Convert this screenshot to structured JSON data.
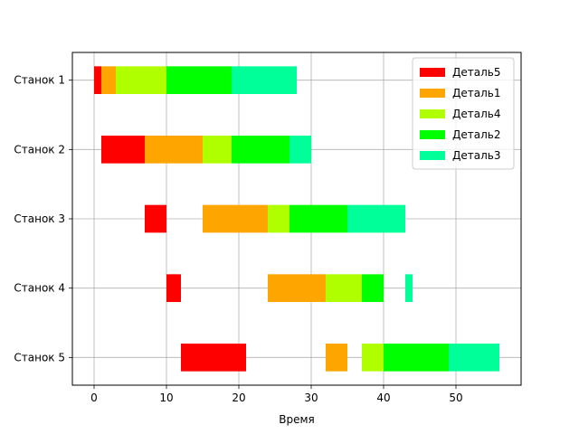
{
  "chart_data": {
    "type": "bar",
    "orientation": "horizontal",
    "xlabel": "Время",
    "ylabel": "",
    "xlim": [
      -3,
      59
    ],
    "xticks": [
      0,
      10,
      20,
      30,
      40,
      50
    ],
    "grid": true,
    "legend_position": "upper right",
    "machines": [
      "Станок 1",
      "Станок 2",
      "Станок 3",
      "Станок 4",
      "Станок 5"
    ],
    "series": [
      {
        "name": "Деталь5",
        "color": "#ff0000",
        "intervals": [
          {
            "machine": "Станок 1",
            "start": 0,
            "end": 1
          },
          {
            "machine": "Станок 2",
            "start": 1,
            "end": 7
          },
          {
            "machine": "Станок 3",
            "start": 7,
            "end": 10
          },
          {
            "machine": "Станок 4",
            "start": 10,
            "end": 12
          },
          {
            "machine": "Станок 5",
            "start": 12,
            "end": 21
          }
        ]
      },
      {
        "name": "Деталь1",
        "color": "#ffa500",
        "intervals": [
          {
            "machine": "Станок 1",
            "start": 1,
            "end": 3
          },
          {
            "machine": "Станок 2",
            "start": 7,
            "end": 15
          },
          {
            "machine": "Станок 3",
            "start": 15,
            "end": 24
          },
          {
            "machine": "Станок 4",
            "start": 24,
            "end": 32
          },
          {
            "machine": "Станок 5",
            "start": 32,
            "end": 35
          }
        ]
      },
      {
        "name": "Деталь4",
        "color": "#b0ff00",
        "intervals": [
          {
            "machine": "Станок 1",
            "start": 3,
            "end": 10
          },
          {
            "machine": "Станок 2",
            "start": 15,
            "end": 19
          },
          {
            "machine": "Станок 3",
            "start": 24,
            "end": 27
          },
          {
            "machine": "Станок 4",
            "start": 32,
            "end": 37
          },
          {
            "machine": "Станок 5",
            "start": 37,
            "end": 40
          }
        ]
      },
      {
        "name": "Деталь2",
        "color": "#00ff00",
        "intervals": [
          {
            "machine": "Станок 1",
            "start": 10,
            "end": 19
          },
          {
            "machine": "Станок 2",
            "start": 19,
            "end": 27
          },
          {
            "machine": "Станок 3",
            "start": 27,
            "end": 35
          },
          {
            "machine": "Станок 4",
            "start": 37,
            "end": 40
          },
          {
            "machine": "Станок 5",
            "start": 40,
            "end": 49
          }
        ]
      },
      {
        "name": "Деталь3",
        "color": "#00ff99",
        "intervals": [
          {
            "machine": "Станок 1",
            "start": 19,
            "end": 28
          },
          {
            "machine": "Станок 2",
            "start": 27,
            "end": 30
          },
          {
            "machine": "Станок 3",
            "start": 35,
            "end": 43
          },
          {
            "machine": "Станок 4",
            "start": 43,
            "end": 44
          },
          {
            "machine": "Станок 5",
            "start": 49,
            "end": 56
          }
        ]
      }
    ]
  }
}
